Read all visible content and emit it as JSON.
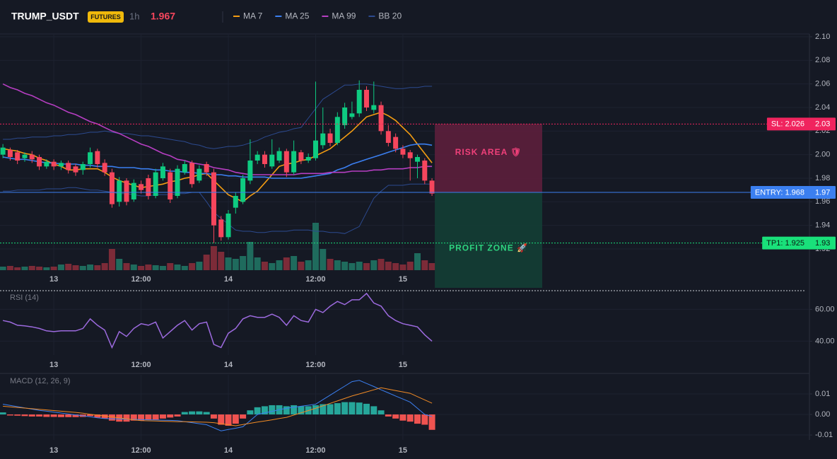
{
  "header": {
    "symbol": "TRUMP_USDT",
    "badge": "FUTURES",
    "interval": "1h",
    "price": "1.967"
  },
  "chart_data": [
    {
      "type": "candlestick",
      "up_color": "#0ecb81",
      "down_color": "#f6465d",
      "volume_up_color": "#1f6b5d",
      "volume_down_color": "#7c2b38",
      "candles": {
        "open": [
          2.0,
          2.004,
          2.002,
          1.997,
          2.0,
          1.998,
          1.99,
          1.994,
          1.99,
          1.993,
          1.99,
          1.987,
          1.992,
          2.003,
          1.993,
          1.985,
          1.96,
          1.978,
          1.962,
          1.975,
          1.98,
          1.965,
          1.98,
          1.985,
          1.965,
          1.985,
          1.993,
          1.978,
          1.992,
          1.985,
          1.945,
          1.93,
          1.955,
          1.96,
          1.978,
          1.995,
          2.0,
          1.99,
          1.995,
          2.003,
          1.985,
          2.002,
          1.995,
          1.997,
          2.008,
          2.018,
          2.01,
          2.025,
          2.032,
          2.035,
          2.055,
          2.038,
          2.042,
          2.02,
          2.015,
          2.005,
          2.002,
          1.994,
          1.995,
          1.978
        ],
        "high": [
          2.009,
          2.006,
          2.004,
          2.002,
          2.003,
          2.0,
          1.996,
          1.996,
          1.995,
          1.995,
          1.992,
          1.994,
          2.006,
          2.005,
          1.996,
          1.988,
          1.981,
          1.98,
          1.979,
          1.978,
          1.983,
          1.988,
          1.993,
          1.988,
          1.991,
          1.995,
          1.995,
          1.991,
          1.994,
          1.988,
          1.948,
          1.953,
          1.968,
          1.983,
          2.013,
          2.003,
          2.003,
          2.013,
          2.006,
          2.005,
          2.012,
          2.004,
          2.001,
          2.062,
          2.04,
          2.022,
          2.036,
          2.044,
          2.045,
          2.063,
          2.058,
          2.062,
          2.045,
          2.025,
          2.018,
          2.008,
          2.004,
          2.0,
          1.997,
          1.98
        ],
        "low": [
          1.997,
          1.995,
          1.992,
          1.994,
          1.993,
          1.987,
          1.988,
          1.987,
          1.987,
          1.984,
          1.982,
          1.983,
          1.989,
          1.989,
          1.982,
          1.955,
          1.956,
          1.957,
          1.96,
          1.967,
          1.962,
          1.963,
          1.978,
          1.959,
          1.963,
          1.983,
          1.972,
          1.976,
          1.982,
          1.925,
          1.927,
          1.928,
          1.95,
          1.958,
          1.975,
          1.992,
          1.989,
          1.988,
          1.993,
          1.981,
          1.983,
          1.992,
          1.993,
          1.995,
          2.005,
          2.007,
          2.008,
          2.022,
          2.03,
          2.032,
          2.037,
          2.035,
          2.017,
          2.007,
          2.002,
          1.997,
          1.978,
          1.98,
          1.975,
          1.965
        ],
        "close": [
          2.006,
          1.998,
          1.995,
          2.0,
          1.996,
          1.99,
          1.994,
          1.99,
          1.993,
          1.987,
          1.985,
          1.992,
          2.002,
          1.992,
          1.985,
          1.958,
          1.978,
          1.96,
          1.976,
          1.97,
          1.965,
          1.985,
          1.99,
          1.962,
          1.988,
          1.992,
          1.975,
          1.988,
          1.985,
          1.94,
          1.93,
          1.95,
          1.965,
          1.98,
          1.995,
          2.0,
          1.992,
          2.0,
          2.003,
          1.985,
          2.003,
          1.995,
          1.998,
          2.012,
          2.018,
          2.01,
          2.032,
          2.04,
          2.035,
          2.055,
          2.04,
          2.042,
          2.02,
          2.01,
          2.005,
          2.0,
          1.997,
          1.998,
          1.978,
          1.967
        ]
      },
      "volume": [
        5,
        6,
        4,
        5,
        6,
        5,
        4,
        5,
        8,
        9,
        7,
        6,
        8,
        7,
        10,
        30,
        16,
        10,
        8,
        6,
        8,
        7,
        6,
        10,
        8,
        6,
        10,
        12,
        22,
        34,
        26,
        18,
        16,
        20,
        40,
        18,
        12,
        10,
        14,
        18,
        20,
        12,
        14,
        67,
        30,
        16,
        14,
        12,
        10,
        12,
        10,
        14,
        16,
        12,
        10,
        8,
        12,
        24,
        14,
        10
      ],
      "series": [
        {
          "name": "MA 7",
          "color": "#f39c12",
          "values": [
            2.005,
            2.004,
            2.003,
            2.001,
            2.0,
            1.997,
            1.995,
            1.992,
            1.99,
            1.987,
            1.987,
            1.988,
            1.988,
            1.988,
            1.985,
            1.981,
            1.978,
            1.976,
            1.974,
            1.972,
            1.973,
            1.974,
            1.975,
            1.977,
            1.978,
            1.98,
            1.981,
            1.983,
            1.984,
            1.978,
            1.972,
            1.966,
            1.963,
            1.96,
            1.965,
            1.969,
            1.976,
            1.983,
            1.99,
            1.992,
            1.993,
            1.995,
            1.996,
            1.999,
            2.002,
            2.005,
            2.01,
            2.015,
            2.02,
            2.026,
            2.032,
            2.034,
            2.036,
            2.033,
            2.029,
            2.023,
            2.017,
            2.009,
            2.001,
            1.993
          ]
        },
        {
          "name": "MA 25",
          "color": "#3b7ff0",
          "values": [
            1.998,
            1.997,
            1.996,
            1.996,
            1.995,
            1.994,
            1.993,
            1.993,
            1.992,
            1.992,
            1.992,
            1.991,
            1.991,
            1.99,
            1.99,
            1.99,
            1.989,
            1.989,
            1.989,
            1.988,
            1.988,
            1.987,
            1.987,
            1.986,
            1.986,
            1.985,
            1.985,
            1.984,
            1.984,
            1.983,
            1.983,
            1.982,
            1.982,
            1.981,
            1.981,
            1.981,
            1.981,
            1.98,
            1.98,
            1.98,
            1.98,
            1.98,
            1.981,
            1.982,
            1.983,
            1.984,
            1.987,
            1.989,
            1.992,
            1.994,
            1.996,
            1.998,
            2.0,
            2.002,
            2.004,
            2.006,
            2.008,
            2.009,
            2.009,
            2.008
          ]
        },
        {
          "name": "MA 99",
          "color": "#b63ec2",
          "values": [
            2.06,
            2.057,
            2.055,
            2.052,
            2.05,
            2.047,
            2.044,
            2.042,
            2.039,
            2.036,
            2.034,
            2.031,
            2.028,
            2.026,
            2.023,
            2.02,
            2.018,
            2.015,
            2.012,
            2.009,
            2.007,
            2.004,
            2.001,
            1.999,
            1.996,
            1.995,
            1.993,
            1.992,
            1.991,
            1.989,
            1.988,
            1.987,
            1.985,
            1.984,
            1.983,
            1.983,
            1.983,
            1.983,
            1.983,
            1.983,
            1.983,
            1.984,
            1.984,
            1.984,
            1.984,
            1.985,
            1.985,
            1.985,
            1.986,
            1.986,
            1.986,
            1.987,
            1.987,
            1.988,
            1.988,
            1.988,
            1.989,
            1.989,
            1.99,
            1.99
          ]
        },
        {
          "name": "BB 20",
          "color": "#2c4a8f",
          "upper": [
            2.013,
            2.013,
            2.014,
            2.014,
            2.015,
            2.015,
            2.015,
            2.016,
            2.016,
            2.017,
            2.017,
            2.018,
            2.019,
            2.019,
            2.02,
            2.019,
            2.018,
            2.018,
            2.017,
            2.016,
            2.016,
            2.015,
            2.014,
            2.013,
            2.012,
            2.011,
            2.009,
            2.008,
            2.006,
            2.005,
            2.006,
            2.007,
            2.007,
            2.008,
            2.01,
            2.012,
            2.015,
            2.017,
            2.019,
            2.02,
            2.022,
            2.023,
            2.031,
            2.039,
            2.047,
            2.051,
            2.055,
            2.059,
            2.059,
            2.06,
            2.06,
            2.059,
            2.058,
            2.057,
            2.056,
            2.056,
            2.057,
            2.057,
            2.058,
            2.058
          ],
          "lower": [
            1.969,
            1.969,
            1.97,
            1.97,
            1.97,
            1.97,
            1.971,
            1.971,
            1.971,
            1.972,
            1.972,
            1.971,
            1.97,
            1.97,
            1.969,
            1.968,
            1.967,
            1.967,
            1.966,
            1.965,
            1.965,
            1.966,
            1.966,
            1.966,
            1.967,
            1.967,
            1.968,
            1.968,
            1.96,
            1.951,
            1.946,
            1.941,
            1.936,
            1.935,
            1.935,
            1.934,
            1.934,
            1.935,
            1.935,
            1.935,
            1.936,
            1.936,
            1.936,
            1.935,
            1.935,
            1.934,
            1.934,
            1.933,
            1.936,
            1.939,
            1.951,
            1.963,
            1.969,
            1.974,
            1.974,
            1.974,
            1.975,
            1.975,
            1.975,
            1.975
          ]
        }
      ],
      "xlim": [
        -0.4,
        110.9
      ],
      "xticks": [
        {
          "value": 7,
          "label": "13"
        },
        {
          "value": 19,
          "label": "12:00"
        },
        {
          "value": 31,
          "label": "14"
        },
        {
          "value": 43,
          "label": "12:00"
        },
        {
          "value": 55,
          "label": "15"
        }
      ],
      "ylim": [
        1.902,
        2.1024
      ],
      "yticks": [
        {
          "value": 2.1,
          "label": "2.10"
        },
        2.08,
        2.06,
        2.04,
        2.02,
        {
          "value": 2.0,
          "label": "2.00"
        },
        1.98,
        1.96,
        1.94,
        1.92
      ],
      "grid": true,
      "price_lines": [
        {
          "label": "SL: 2.026",
          "value": 2.026,
          "axis_label": "2.03",
          "color": "#f0245e",
          "text_color": "#ffffff",
          "style": "dotted"
        },
        {
          "label": "ENTRY: 1.968",
          "value": 1.968,
          "axis_label": "1.97",
          "color": "#3b7ff0",
          "text_color": "#ffffff",
          "style": "solid"
        },
        {
          "label": "TP1: 1.925",
          "value": 1.925,
          "axis_label": "1.93",
          "color": "#19e07a",
          "text_color": "#0b1a12",
          "style": "dotted"
        }
      ],
      "zones": [
        {
          "label": "RISK AREA 🛡",
          "from": 2.026,
          "to": 1.968,
          "color": "#5b1e3c",
          "text_color": "#f0407a"
        },
        {
          "label": "PROFIT ZONE 🚀",
          "from": 1.968,
          "to": 1.887,
          "color": "#143d35",
          "text_color": "#2ed37f"
        }
      ]
    },
    {
      "type": "line",
      "title": "RSI (14)",
      "color": "#9c6ade",
      "values": [
        53,
        52,
        50,
        49.6,
        49,
        48,
        46.5,
        46,
        46.5,
        46.5,
        46.5,
        48,
        54,
        50,
        47,
        36,
        46,
        43,
        48,
        51,
        50,
        52,
        42,
        46,
        50,
        53,
        47,
        51,
        52,
        38,
        36,
        45,
        48,
        54,
        56,
        55,
        55,
        57,
        55,
        50,
        56,
        53,
        52,
        60,
        58,
        62,
        65,
        63,
        66,
        66,
        70,
        64,
        62,
        56,
        53,
        51,
        50,
        49,
        44,
        40
      ],
      "xlim": [
        -0.4,
        110.9
      ],
      "xticks": [
        {
          "value": 7,
          "label": "13"
        },
        {
          "value": 19,
          "label": "12:00"
        },
        {
          "value": 31,
          "label": "14"
        },
        {
          "value": 43,
          "label": "12:00"
        },
        {
          "value": 55,
          "label": "15"
        }
      ],
      "ylim": [
        31.3,
        71.3
      ],
      "yticks": [
        {
          "value": 60,
          "label": "60.00"
        },
        {
          "value": 40,
          "label": "40.00"
        }
      ],
      "grid": true
    },
    {
      "type": "macd",
      "title": "MACD (12, 26, 9)",
      "macd": {
        "color": "#3b7ff0",
        "values": [
          0.005,
          0.0044,
          0.0038,
          0.0032,
          0.0026,
          0.002,
          0.0016,
          0.0011,
          0.0007,
          0.0002,
          -0.0002,
          -0.0007,
          -0.0011,
          -0.0016,
          -0.002,
          -0.0021,
          -0.0022,
          -0.0023,
          -0.0024,
          -0.0025,
          -0.0026,
          -0.0027,
          -0.0028,
          -0.0029,
          -0.003,
          -0.0035,
          -0.004,
          -0.0045,
          -0.005,
          -0.0065,
          -0.008,
          -0.0073,
          -0.0067,
          -0.006,
          -0.003,
          0.0,
          0.0008,
          0.0015,
          0.0023,
          0.003,
          0.0035,
          0.004,
          0.0045,
          0.005,
          0.0072,
          0.0094,
          0.0116,
          0.0138,
          0.016,
          0.0166,
          0.0151,
          0.0136,
          0.012,
          0.0105,
          0.009,
          0.0075,
          0.006,
          0.003,
          0.0,
          -0.001
        ]
      },
      "signal": {
        "color": "#f08a24",
        "values": [
          0.004,
          0.0037,
          0.0034,
          0.0031,
          0.0028,
          0.0025,
          0.0022,
          0.0019,
          0.0016,
          0.0013,
          0.001,
          0.0006,
          0.0001,
          -0.0003,
          -0.0008,
          -0.0012,
          -0.0017,
          -0.0021,
          -0.0026,
          -0.003,
          -0.0031,
          -0.0032,
          -0.0033,
          -0.0034,
          -0.0035,
          -0.0035,
          -0.0036,
          -0.0037,
          -0.0038,
          -0.004,
          -0.0045,
          -0.005,
          -0.0055,
          -0.0049,
          -0.0043,
          -0.0037,
          -0.0032,
          -0.0026,
          -0.002,
          -0.0014,
          -0.0003,
          0.0008,
          0.0019,
          0.003,
          0.0042,
          0.0054,
          0.0066,
          0.0078,
          0.009,
          0.01,
          0.011,
          0.012,
          0.013,
          0.0123,
          0.0116,
          0.011,
          0.0103,
          0.0087,
          0.0071,
          0.0055
        ]
      },
      "histogram": {
        "up_color": "#26a69a",
        "down_color": "#ef5350",
        "values": [
          0.001,
          -0.0005,
          -0.0006,
          -0.0008,
          -0.001,
          -0.001,
          -0.0012,
          -0.0012,
          -0.0013,
          -0.0013,
          -0.0013,
          -0.0012,
          -0.0008,
          -0.0015,
          -0.002,
          -0.003,
          -0.0035,
          -0.0035,
          -0.003,
          -0.003,
          -0.0025,
          -0.0025,
          -0.002,
          -0.0015,
          -0.001,
          0.0012,
          0.0015,
          0.0015,
          0.0012,
          -0.002,
          -0.005,
          -0.0055,
          -0.0045,
          -0.002,
          0.002,
          0.0035,
          0.004,
          0.0045,
          0.0045,
          0.004,
          0.0045,
          0.004,
          0.004,
          0.0045,
          0.005,
          0.005,
          0.0055,
          0.006,
          0.006,
          0.0058,
          0.0052,
          0.004,
          0.002,
          -0.001,
          -0.002,
          -0.003,
          -0.0035,
          -0.0045,
          -0.005,
          -0.0075
        ]
      },
      "xlim": [
        -0.4,
        110.9
      ],
      "xticks": [
        {
          "value": 7,
          "label": "13"
        },
        {
          "value": 19,
          "label": "12:00"
        },
        {
          "value": 31,
          "label": "14"
        },
        {
          "value": 43,
          "label": "12:00"
        },
        {
          "value": 55,
          "label": "15"
        }
      ],
      "ylim": [
        -0.0124,
        0.0193
      ],
      "yticks": [
        0.01,
        {
          "value": 0,
          "label": "0.00"
        },
        -0.01
      ],
      "grid": true
    }
  ]
}
